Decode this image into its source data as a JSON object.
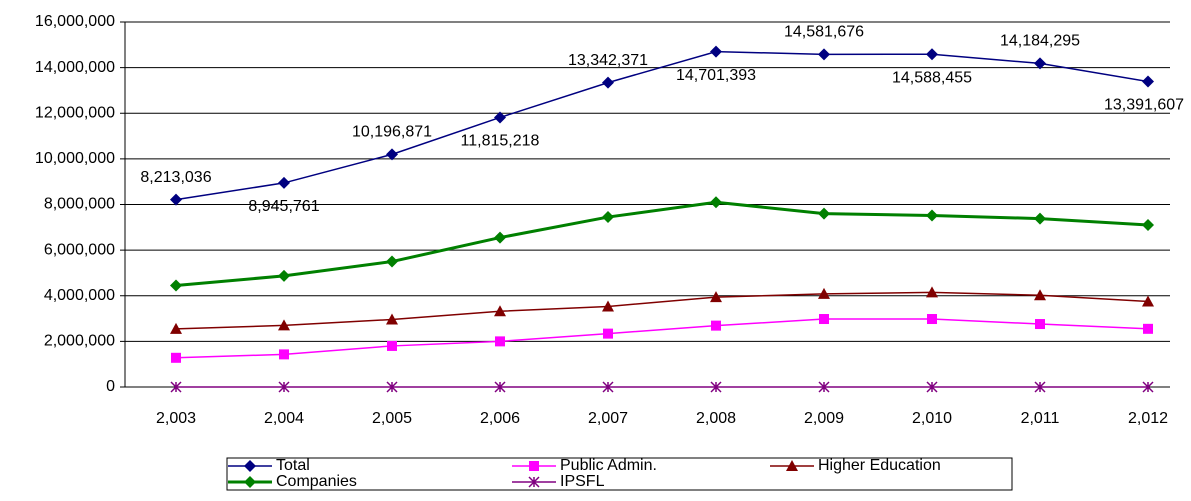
{
  "chart_data": {
    "type": "line",
    "categories": [
      "2,003",
      "2,004",
      "2,005",
      "2,006",
      "2,007",
      "2,008",
      "2,009",
      "2,010",
      "2,011",
      "2,012"
    ],
    "series": [
      {
        "name": "Total",
        "color": "#000080",
        "marker": "diamond",
        "values": [
          8213036,
          8945761,
          10196871,
          11815218,
          13342371,
          14701393,
          14581676,
          14588455,
          14184295,
          13391607
        ],
        "value_labels": [
          "8,213,036",
          "8,945,761",
          "10,196,871",
          "11,815,218",
          "13,342,371",
          "14,701,393",
          "14,581,676",
          "14,588,455",
          "14,184,295",
          "13,391,607"
        ]
      },
      {
        "name": "Companies",
        "color": "#008000",
        "marker": "diamond",
        "values": [
          4450000,
          4870000,
          5500000,
          6550000,
          7450000,
          8100000,
          7600000,
          7520000,
          7380000,
          7100000
        ]
      },
      {
        "name": "Public Admin.",
        "color": "#ff00ff",
        "marker": "square",
        "values": [
          1280000,
          1430000,
          1800000,
          2000000,
          2340000,
          2690000,
          2980000,
          2980000,
          2760000,
          2550000
        ]
      },
      {
        "name": "IPSFL",
        "color": "#800080",
        "marker": "star",
        "values": [
          0,
          0,
          0,
          0,
          0,
          0,
          0,
          0,
          0,
          0
        ]
      },
      {
        "name": "Higher Education",
        "color": "#800000",
        "marker": "triangle",
        "values": [
          2550000,
          2700000,
          2960000,
          3320000,
          3530000,
          3940000,
          4080000,
          4150000,
          4020000,
          3750000
        ]
      }
    ],
    "ylim": [
      0,
      16000000
    ],
    "yticks": [
      0,
      {
        "value": 2000000,
        "label": "2,000,000"
      },
      {
        "value": 4000000,
        "label": "4,000,000"
      },
      {
        "value": 6000000,
        "label": "6,000,000"
      },
      {
        "value": 8000000,
        "label": "8,000,000"
      },
      {
        "value": 10000000,
        "label": "10,000,000"
      },
      {
        "value": 12000000,
        "label": "12,000,000"
      },
      {
        "value": 14000000,
        "label": "14,000,000"
      },
      {
        "value": 16000000,
        "label": "16,000,000"
      }
    ],
    "grid": true,
    "legend": "bottom"
  }
}
